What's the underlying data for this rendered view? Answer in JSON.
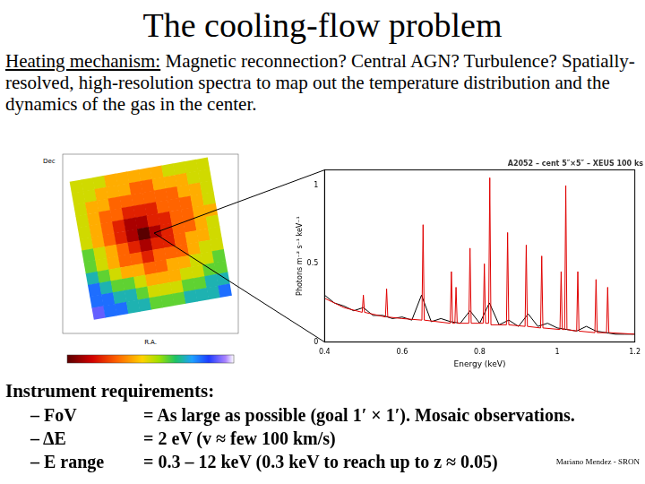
{
  "title": "The cooling-flow problem",
  "intro": {
    "lead": "Heating mechanism:",
    "text": "Magnetic reconnection? Central AGN? Turbulence? Spatially-resolved, high-resolution spectra to map out the temperature distribution and the dynamics of the gas in the center."
  },
  "map": {
    "x_label": "R.A.",
    "y_label": "Dec",
    "range": [
      0,
      10
    ],
    "cells": [
      [
        5,
        5,
        5,
        4,
        4,
        4,
        4,
        4,
        5,
        5,
        5,
        5
      ],
      [
        5,
        5,
        4,
        4,
        4,
        3,
        3,
        4,
        4,
        4,
        5,
        5
      ],
      [
        5,
        4,
        4,
        3,
        3,
        3,
        3,
        3,
        3,
        4,
        4,
        5
      ],
      [
        5,
        4,
        3,
        3,
        2,
        2,
        2,
        3,
        3,
        3,
        4,
        5
      ],
      [
        5,
        4,
        3,
        2,
        1,
        1,
        2,
        2,
        3,
        3,
        4,
        4
      ],
      [
        5,
        4,
        3,
        2,
        1,
        0,
        1,
        2,
        3,
        3,
        4,
        5
      ],
      [
        6,
        5,
        4,
        3,
        2,
        1,
        2,
        2,
        3,
        4,
        4,
        5
      ],
      [
        6,
        5,
        4,
        3,
        3,
        2,
        3,
        3,
        3,
        4,
        5,
        5
      ],
      [
        7,
        6,
        5,
        4,
        4,
        3,
        3,
        4,
        4,
        5,
        5,
        6
      ],
      [
        8,
        7,
        6,
        6,
        5,
        4,
        4,
        4,
        5,
        5,
        6,
        6
      ],
      [
        8,
        8,
        7,
        7,
        6,
        5,
        5,
        5,
        6,
        6,
        7,
        7
      ],
      [
        9,
        8,
        8,
        7,
        7,
        6,
        6,
        6,
        7,
        7,
        7,
        8
      ]
    ]
  },
  "chart_data": {
    "type": "line",
    "title": "A2052 – cent 5″×5″ – XEUS 100 ks",
    "x_label": "Energy (keV)",
    "y_label": "Photons m⁻² s⁻¹ keV⁻¹",
    "xlim": [
      0.4,
      1.2
    ],
    "xticks": [
      0.4,
      0.6,
      0.8,
      1,
      1.2
    ],
    "ylim": [
      0,
      1.1
    ],
    "yticks": [
      0,
      0.5,
      1
    ],
    "grid": false,
    "series": [
      {
        "color": "#e00000",
        "x": [
          0.4,
          0.45,
          0.497,
          0.5,
          0.503,
          0.557,
          0.56,
          0.563,
          0.6,
          0.651,
          0.654,
          0.657,
          0.724,
          0.727,
          0.73,
          0.736,
          0.739,
          0.742,
          0.772,
          0.775,
          0.778,
          0.809,
          0.812,
          0.815,
          0.823,
          0.826,
          0.829,
          0.869,
          0.872,
          0.875,
          0.917,
          0.92,
          0.923,
          0.957,
          0.96,
          0.963,
          1.007,
          1.01,
          1.013,
          1.019,
          1.022,
          1.025,
          1.05,
          1.053,
          1.056,
          1.097,
          1.1,
          1.103,
          1.127,
          1.13,
          1.133,
          1.2
        ],
        "values": [
          0.28,
          0.22,
          0.19,
          0.3,
          0.19,
          0.16,
          0.34,
          0.16,
          0.15,
          0.14,
          0.75,
          0.14,
          0.12,
          0.45,
          0.12,
          0.12,
          0.35,
          0.12,
          0.12,
          0.6,
          0.12,
          0.12,
          0.5,
          0.12,
          0.12,
          1.05,
          0.11,
          0.11,
          0.7,
          0.11,
          0.1,
          0.62,
          0.1,
          0.09,
          0.55,
          0.09,
          0.08,
          0.45,
          0.08,
          0.08,
          1,
          0.08,
          0.07,
          0.45,
          0.07,
          0.06,
          0.4,
          0.06,
          0.06,
          0.35,
          0.06,
          0.05
        ]
      },
      {
        "color": "#000000",
        "x": [
          0.4,
          0.425,
          0.45,
          0.475,
          0.5,
          0.525,
          0.55,
          0.575,
          0.6,
          0.625,
          0.65,
          0.675,
          0.7,
          0.725,
          0.75,
          0.775,
          0.8,
          0.825,
          0.85,
          0.875,
          0.9,
          0.925,
          0.95,
          0.975,
          1,
          1.025,
          1.05,
          1.075,
          1.1,
          1.125,
          1.15,
          1.175,
          1.2
        ],
        "values": [
          0.3,
          0.25,
          0.23,
          0.2,
          0.22,
          0.17,
          0.17,
          0.15,
          0.16,
          0.14,
          0.3,
          0.13,
          0.15,
          0.13,
          0.12,
          0.2,
          0.12,
          0.25,
          0.11,
          0.14,
          0.1,
          0.18,
          0.1,
          0.12,
          0.09,
          0.08,
          0.07,
          0.1,
          0.07,
          0.06,
          0.05,
          0.05,
          0.05
        ]
      }
    ]
  },
  "requirements": {
    "heading": "Instrument requirements:",
    "rows": [
      {
        "item": "– FoV",
        "spec": "= As large as possible (goal 1′ × 1′). Mosaic observations."
      },
      {
        "item": "– ΔE",
        "spec": "= 2 eV (v ≈ few 100 km/s)"
      },
      {
        "item": "– E range",
        "spec": "= 0.3 – 12 keV (0.3 keV to reach up to z ≈ 0.05)"
      }
    ]
  },
  "credit": "Mariano Mendez - SRON"
}
